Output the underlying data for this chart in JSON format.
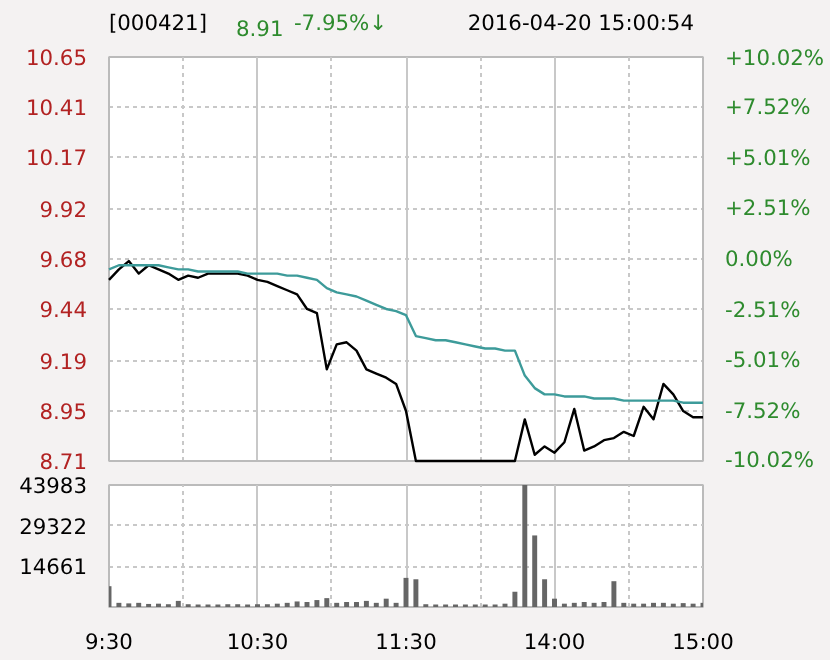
{
  "chart_data": [
    {
      "type": "line",
      "title": "[000421]",
      "annotations": [
        "8.91",
        "-7.95%↓",
        "2016-04-20 15:00:54"
      ],
      "ylim": [
        8.71,
        10.65
      ],
      "yticks": [
        8.71,
        8.95,
        9.19,
        9.44,
        9.68,
        9.92,
        10.17,
        10.41,
        10.65
      ],
      "y2lim": [
        -10.02,
        10.02
      ],
      "y2ticks": [
        {
          "value": -10.02,
          "label": "-10.02%"
        },
        {
          "value": -7.52,
          "label": "-7.52%"
        },
        {
          "value": -5.01,
          "label": "-5.01%"
        },
        {
          "value": -2.51,
          "label": "-2.51%"
        },
        {
          "value": 0,
          "label": "0.00%"
        },
        {
          "value": 2.51,
          "label": "+2.51%"
        },
        {
          "value": 5.01,
          "label": "+5.01%"
        },
        {
          "value": 7.52,
          "label": "+7.52%"
        },
        {
          "value": 10.02,
          "label": "+10.02%"
        }
      ],
      "grid": true,
      "tick_labels": "y",
      "series": [
        {
          "color": "#000000",
          "values": [
            9.58,
            9.63,
            9.67,
            9.61,
            9.65,
            9.63,
            9.61,
            9.58,
            9.6,
            9.59,
            9.61,
            9.61,
            9.61,
            9.61,
            9.6,
            9.58,
            9.57,
            9.55,
            9.53,
            9.51,
            9.44,
            9.42,
            9.15,
            9.27,
            9.28,
            9.24,
            9.15,
            9.13,
            9.11,
            9.08,
            8.95,
            8.71,
            8.71,
            8.71,
            8.71,
            8.71,
            8.71,
            8.71,
            8.71,
            8.71,
            8.71,
            8.71,
            8.91,
            8.74,
            8.78,
            8.75,
            8.8,
            8.96,
            8.76,
            8.78,
            8.81,
            8.82,
            8.85,
            8.83,
            8.97,
            8.91,
            9.08,
            9.03,
            8.95,
            8.92,
            8.92
          ]
        },
        {
          "color": "#3d9b9a",
          "values": [
            9.63,
            9.65,
            9.65,
            9.65,
            9.65,
            9.65,
            9.64,
            9.63,
            9.63,
            9.62,
            9.62,
            9.62,
            9.62,
            9.62,
            9.61,
            9.61,
            9.61,
            9.61,
            9.6,
            9.6,
            9.59,
            9.58,
            9.54,
            9.52,
            9.51,
            9.5,
            9.48,
            9.46,
            9.44,
            9.43,
            9.41,
            9.31,
            9.3,
            9.29,
            9.29,
            9.28,
            9.27,
            9.26,
            9.25,
            9.25,
            9.24,
            9.24,
            9.12,
            9.06,
            9.03,
            9.03,
            9.02,
            9.02,
            9.02,
            9.01,
            9.01,
            9.01,
            9.0,
            9.0,
            9.0,
            9.0,
            9.0,
            9.0,
            8.99,
            8.99,
            8.99
          ]
        }
      ]
    },
    {
      "type": "bar",
      "categories": [
        "9:30",
        null,
        null,
        null,
        null,
        null,
        null,
        null,
        null,
        null,
        null,
        null,
        null,
        null,
        null,
        "10:30",
        null,
        null,
        null,
        null,
        null,
        null,
        null,
        null,
        null,
        null,
        null,
        null,
        null,
        null,
        "11:30",
        null,
        null,
        null,
        null,
        null,
        null,
        null,
        null,
        null,
        null,
        null,
        null,
        null,
        null,
        "14:00",
        null,
        null,
        null,
        null,
        null,
        null,
        null,
        null,
        null,
        null,
        null,
        null,
        null,
        null,
        "15:00"
      ],
      "ylim": [
        0,
        43983
      ],
      "yticks": [
        14661,
        29322,
        43983
      ],
      "grid": true,
      "values": [
        7500,
        1500,
        1300,
        1500,
        1100,
        1200,
        1000,
        2200,
        1000,
        900,
        900,
        900,
        1000,
        1000,
        900,
        1000,
        1000,
        1200,
        1500,
        2000,
        1800,
        2500,
        3200,
        1500,
        1800,
        1800,
        2200,
        1500,
        3000,
        1500,
        10500,
        10000,
        1000,
        900,
        900,
        900,
        900,
        900,
        900,
        900,
        1200,
        5500,
        43983,
        25800,
        10000,
        3000,
        1200,
        1500,
        1800,
        1500,
        1800,
        9300,
        1500,
        1200,
        1200,
        1500,
        1500,
        1200,
        1400,
        1200,
        1500
      ],
      "color": "#666666"
    }
  ]
}
